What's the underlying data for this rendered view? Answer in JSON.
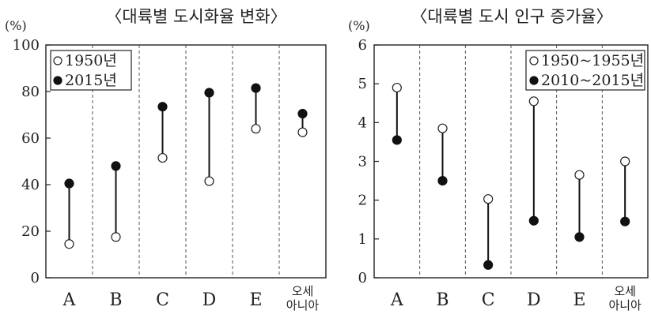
{
  "chart_data": [
    {
      "type": "dot-range",
      "title": "〈대륙별 도시화율 변화〉",
      "unit": "(%)",
      "ylim": [
        0,
        100
      ],
      "yticks": [
        "0",
        "20",
        "40",
        "60",
        "80",
        "100"
      ],
      "categories": [
        "A",
        "B",
        "C",
        "D",
        "E",
        "오세아니아"
      ],
      "series": [
        {
          "name": "1950년",
          "marker": "open",
          "values": [
            14.5,
            17.5,
            51.5,
            41.5,
            64,
            62.5
          ]
        },
        {
          "name": "2015년",
          "marker": "filled",
          "values": [
            40.5,
            48,
            73.5,
            79.5,
            81.5,
            70.5
          ]
        }
      ],
      "grid": "vertical-dashed-category-separators",
      "legend": "top-left"
    },
    {
      "type": "dot-range",
      "title": "〈대륙별 도시 인구 증가율〉",
      "unit": "(%)",
      "ylim": [
        0,
        6
      ],
      "yticks": [
        "0",
        "1",
        "2",
        "3",
        "4",
        "5",
        "6"
      ],
      "categories": [
        "A",
        "B",
        "C",
        "D",
        "E",
        "오세아니아"
      ],
      "series": [
        {
          "name": "1950~1955년",
          "marker": "open",
          "values": [
            4.9,
            3.85,
            2.03,
            4.55,
            2.65,
            3.0
          ]
        },
        {
          "name": "2010~2015년",
          "marker": "filled",
          "values": [
            3.55,
            2.5,
            0.33,
            1.47,
            1.05,
            1.45
          ]
        }
      ],
      "grid": "vertical-dashed-category-separators",
      "legend": "top-right"
    }
  ]
}
